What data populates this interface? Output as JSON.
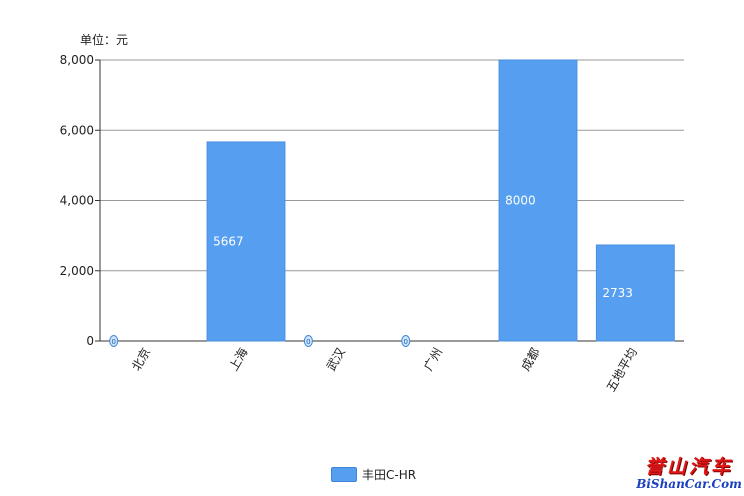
{
  "chart_data": {
    "type": "bar",
    "unit_label": "单位：元",
    "categories": [
      "北京",
      "上海",
      "武汉",
      "广州",
      "成都",
      "五地平均"
    ],
    "series": [
      {
        "name": "丰田C-HR",
        "values": [
          0,
          5667,
          0,
          0,
          8000,
          2733
        ],
        "color": "#559ef0"
      }
    ],
    "ylim": [
      0,
      8000
    ],
    "yticks": [
      0,
      2000,
      4000,
      6000,
      8000
    ],
    "ytick_labels": [
      "0",
      "2,000",
      "4,000",
      "6,000",
      "8,000"
    ],
    "grid": true,
    "legend": "bottom-center"
  },
  "watermark": {
    "cn": "誉山汽车",
    "en": "BiShanCar.Com"
  }
}
